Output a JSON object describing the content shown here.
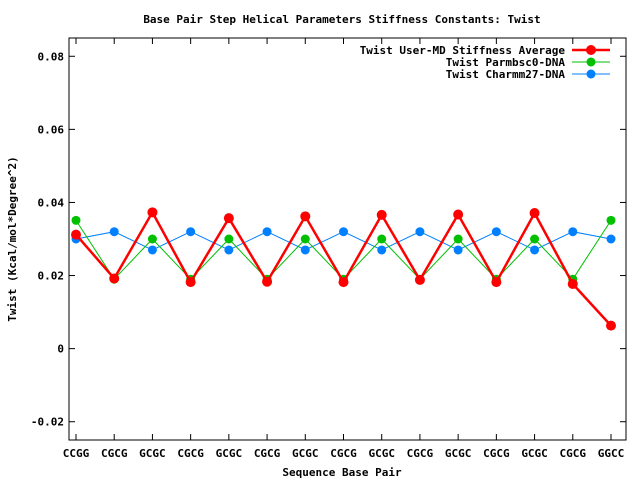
{
  "chart_data": {
    "type": "line",
    "title": "Base Pair Step Helical Parameters Stiffness Constants: Twist",
    "xlabel": "Sequence Base Pair",
    "ylabel": "Twist (Kcal/mol*Degree^2)",
    "categories": [
      "CCGG",
      "CGCG",
      "GCGC",
      "CGCG",
      "GCGC",
      "CGCG",
      "GCGC",
      "CGCG",
      "GCGC",
      "CGCG",
      "GCGC",
      "CGCG",
      "GCGC",
      "CGCG",
      "GGCC"
    ],
    "ylim": [
      -0.025,
      0.085
    ],
    "yticks": [
      -0.02,
      0,
      0.02,
      0.04,
      0.06,
      0.08
    ],
    "ytick_labels": [
      "-0.02",
      "0",
      "0.02",
      "0.04",
      "0.06",
      "0.08"
    ],
    "grid": false,
    "legend_position": "top-right",
    "series": [
      {
        "name": "Twist User-MD Stiffness Average",
        "color": "#ff0000",
        "values": [
          0.0312,
          0.0192,
          0.0373,
          0.0182,
          0.0357,
          0.0183,
          0.0362,
          0.0182,
          0.0366,
          0.0188,
          0.0367,
          0.0182,
          0.0371,
          0.0177,
          0.0063
        ]
      },
      {
        "name": "Twist Parmbsc0-DNA",
        "color": "#00c000",
        "values": [
          0.0351,
          0.019,
          0.03,
          0.019,
          0.03,
          0.019,
          0.03,
          0.019,
          0.03,
          0.019,
          0.03,
          0.019,
          0.03,
          0.019,
          0.0351
        ]
      },
      {
        "name": "Twist Charmm27-DNA",
        "color": "#0080ff",
        "values": [
          0.03,
          0.032,
          0.027,
          0.032,
          0.027,
          0.032,
          0.027,
          0.032,
          0.027,
          0.032,
          0.027,
          0.032,
          0.027,
          0.032,
          0.03
        ]
      }
    ]
  }
}
